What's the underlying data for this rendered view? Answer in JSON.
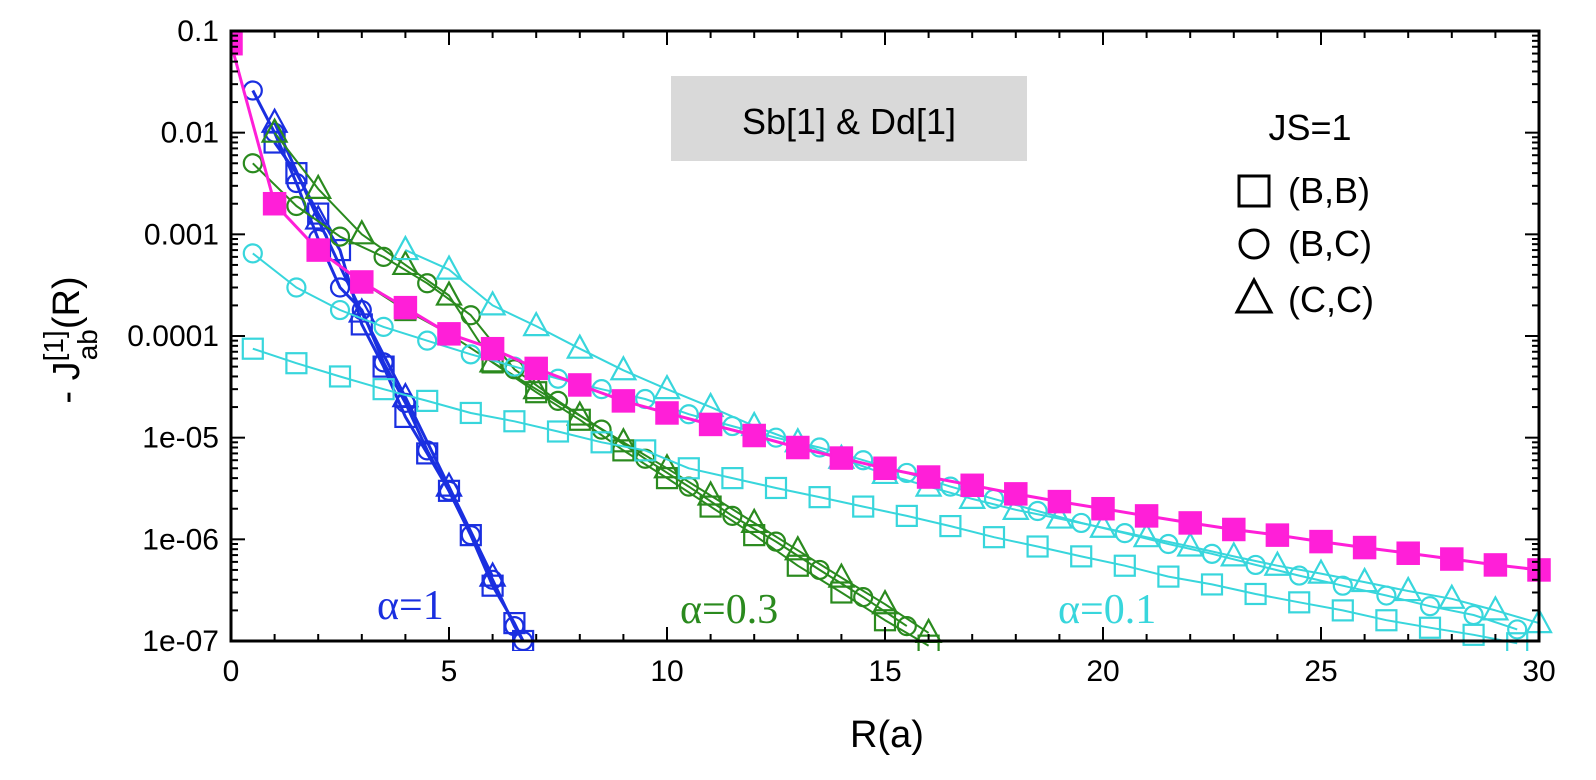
{
  "chart_data": {
    "type": "line",
    "title": "",
    "xlabel": "R(a)",
    "ylabel": {
      "prefix": "- J",
      "superscript": "[1]",
      "subscript": "ab",
      "suffix": "(R)"
    },
    "xlim": [
      0,
      30
    ],
    "ylim": [
      1e-07,
      0.1
    ],
    "yscale": "log",
    "x_ticks": [
      0,
      5,
      10,
      15,
      20,
      25,
      30
    ],
    "x_tick_labels": [
      "0",
      "5",
      "10",
      "15",
      "20",
      "25",
      "30"
    ],
    "y_ticks": [
      0.1,
      0.01,
      0.001,
      0.0001,
      1e-05,
      1e-06,
      1e-07
    ],
    "y_tick_labels": [
      "0.1",
      "0.01",
      "0.001",
      "0.0001",
      "1e-05",
      "1e-06",
      "1e-07"
    ],
    "boxed_label": "Sb[1] & Dd[1]",
    "legend": {
      "title": "JS=1",
      "entries": [
        {
          "marker": "square",
          "label": "(B,B)"
        },
        {
          "marker": "circle",
          "label": "(B,C)"
        },
        {
          "marker": "triangle",
          "label": "(C,C)"
        }
      ]
    },
    "annotations": [
      {
        "text": "α=1",
        "color_key": "blue"
      },
      {
        "text": "α=0.3",
        "color_key": "green"
      },
      {
        "text": "α=0.1",
        "color_key": "cyan"
      }
    ],
    "colors": {
      "blue": "#1a2fe0",
      "green": "#2a8a1e",
      "cyan": "#38d6dc",
      "magenta": "#ff1fd8"
    },
    "series": [
      {
        "name": "alpha=1 (B,B)",
        "color_key": "blue",
        "marker": "square",
        "width": 3,
        "x": [
          1,
          1.5,
          2,
          2.5,
          3,
          3.5,
          4,
          4.5,
          5,
          5.5,
          6,
          6.5,
          6.7
        ],
        "y": [
          0.008,
          0.004,
          0.0016,
          0.0007,
          0.00013,
          5e-05,
          1.6e-05,
          7e-06,
          3e-06,
          1.1e-06,
          3.5e-07,
          1.5e-07,
          1e-07
        ]
      },
      {
        "name": "alpha=1 (B,C)",
        "color_key": "blue",
        "marker": "circle",
        "width": 3,
        "x": [
          0.5,
          1,
          1.5,
          2,
          2.5,
          3,
          3.5,
          4,
          4.5,
          5,
          5.5,
          6,
          6.5,
          6.7
        ],
        "y": [
          0.026,
          0.01,
          0.0032,
          0.0009,
          0.0003,
          0.00018,
          5.5e-05,
          2.2e-05,
          7.5e-06,
          3e-06,
          1.1e-06,
          4e-07,
          1.4e-07,
          1e-07
        ]
      },
      {
        "name": "alpha=1 (C,C)",
        "color_key": "blue",
        "marker": "triangle",
        "width": 3,
        "x": [
          1,
          2,
          3,
          4,
          5,
          6
        ],
        "y": [
          0.0125,
          0.0014,
          0.00017,
          2.5e-05,
          3.3e-06,
          4.3e-07
        ]
      },
      {
        "name": "alpha=0.3 (B,B)",
        "color_key": "green",
        "marker": "square",
        "width": 2,
        "x": [
          1,
          2,
          3,
          4,
          5,
          6,
          7,
          8,
          9,
          10,
          11,
          12,
          13,
          14,
          15,
          16
        ],
        "y": [
          0.002,
          0.0007,
          0.00034,
          0.00018,
          0.000105,
          5.5e-05,
          2.8e-05,
          1.5e-05,
          7.5e-06,
          4e-06,
          2.1e-06,
          1.1e-06,
          5.5e-07,
          3e-07,
          1.6e-07,
          9e-08
        ]
      },
      {
        "name": "alpha=0.3 (B,C)",
        "color_key": "green",
        "marker": "circle",
        "width": 2,
        "x": [
          0.5,
          1.5,
          2.5,
          3.5,
          4.5,
          5.5,
          6.5,
          7.5,
          8.5,
          9.5,
          10.5,
          11.5,
          12.5,
          13.5,
          14.5,
          15.5
        ],
        "y": [
          0.005,
          0.0019,
          0.00095,
          0.0006,
          0.00033,
          0.00016,
          4.7e-05,
          2.3e-05,
          1.2e-05,
          6.2e-06,
          3.3e-06,
          1.7e-06,
          9.5e-07,
          5e-07,
          2.7e-07,
          1.4e-07
        ]
      },
      {
        "name": "alpha=0.3 (C,C)",
        "color_key": "green",
        "marker": "triangle",
        "width": 2,
        "x": [
          1,
          2,
          3,
          4,
          5,
          6,
          7,
          8,
          9,
          10,
          11,
          12,
          13,
          14,
          15,
          16
        ],
        "y": [
          0.01,
          0.0028,
          0.001,
          0.0005,
          0.00025,
          5.5e-05,
          3e-05,
          1.65e-05,
          9e-06,
          5e-06,
          2.7e-06,
          1.45e-06,
          7.8e-07,
          4.2e-07,
          2.3e-07,
          1.2e-07
        ]
      },
      {
        "name": "alpha=0.1 (B,B)",
        "color_key": "cyan",
        "marker": "square",
        "width": 2,
        "x": [
          0.5,
          1.5,
          2.5,
          3.5,
          4.5,
          5.5,
          6.5,
          7.5,
          8.5,
          9.5,
          10.5,
          11.5,
          12.5,
          13.5,
          14.5,
          15.5,
          16.5,
          17.5,
          18.5,
          19.5,
          20.5,
          21.5,
          22.5,
          23.5,
          24.5,
          25.5,
          26.5,
          27.5,
          28.5,
          29.5
        ],
        "y": [
          7.5e-05,
          5.4e-05,
          4e-05,
          3e-05,
          2.3e-05,
          1.75e-05,
          1.45e-05,
          1.15e-05,
          9e-06,
          7.5e-06,
          5e-06,
          4e-06,
          3.2e-06,
          2.6e-06,
          2.1e-06,
          1.7e-06,
          1.35e-06,
          1.05e-06,
          8.5e-07,
          6.8e-07,
          5.5e-07,
          4.3e-07,
          3.6e-07,
          2.9e-07,
          2.4e-07,
          2e-07,
          1.6e-07,
          1.35e-07,
          1.15e-07,
          9.5e-08
        ]
      },
      {
        "name": "alpha=0.1 (B,C)",
        "color_key": "cyan",
        "marker": "circle",
        "width": 2,
        "x": [
          0.5,
          1.5,
          2.5,
          3.5,
          4.5,
          5.5,
          6.5,
          7.5,
          8.5,
          9.5,
          10.5,
          11.5,
          12.5,
          13.5,
          14.5,
          15.5,
          16.5,
          17.5,
          18.5,
          19.5,
          20.5,
          21.5,
          22.5,
          23.5,
          24.5,
          25.5,
          26.5,
          27.5,
          28.5,
          29.5
        ],
        "y": [
          0.00065,
          0.0003,
          0.00018,
          0.000123,
          9e-05,
          6.6e-05,
          5e-05,
          3.8e-05,
          3e-05,
          2.4e-05,
          1.7e-05,
          1.3e-05,
          1e-05,
          8e-06,
          6e-06,
          4.5e-06,
          3.3e-06,
          2.5e-06,
          1.9e-06,
          1.45e-06,
          1.15e-06,
          9e-07,
          7.2e-07,
          5.6e-07,
          4.4e-07,
          3.5e-07,
          2.8e-07,
          2.2e-07,
          1.8e-07,
          1.3e-07
        ]
      },
      {
        "name": "alpha=0.1 (C,C)",
        "color_key": "cyan",
        "marker": "triangle",
        "width": 2,
        "x": [
          4,
          5,
          6,
          7,
          8,
          9,
          10,
          11,
          12,
          13,
          14,
          15,
          16,
          17,
          18,
          19,
          20,
          21,
          22,
          23,
          24,
          25,
          26,
          27,
          28,
          29,
          30
        ],
        "y": [
          0.0007,
          0.00045,
          0.0002,
          0.000125,
          7.5e-05,
          4.6e-05,
          3e-05,
          2e-05,
          1.3e-05,
          9e-06,
          6.2e-06,
          4.4e-06,
          3.3e-06,
          2.5e-06,
          1.95e-06,
          1.6e-06,
          1.3e-06,
          1.05e-06,
          8.5e-07,
          6.8e-07,
          5.5e-07,
          4.6e-07,
          3.8e-07,
          3.1e-07,
          2.6e-07,
          2e-07,
          1.5e-07
        ]
      },
      {
        "name": "magenta (filled squares)",
        "color_key": "magenta",
        "marker": "square-filled",
        "width": 3,
        "x": [
          0,
          1,
          2,
          3,
          4,
          5,
          6,
          7,
          8,
          9,
          10,
          11,
          12,
          13,
          14,
          15,
          16,
          17,
          18,
          19,
          20,
          21,
          22,
          23,
          24,
          25,
          26,
          27,
          28,
          29,
          30
        ],
        "y": [
          0.075,
          0.002,
          0.0007,
          0.00034,
          0.00019,
          0.000105,
          7.5e-05,
          4.8e-05,
          3.3e-05,
          2.3e-05,
          1.75e-05,
          1.35e-05,
          1.05e-05,
          8e-06,
          6.3e-06,
          5e-06,
          4.1e-06,
          3.4e-06,
          2.8e-06,
          2.35e-06,
          2e-06,
          1.7e-06,
          1.45e-06,
          1.25e-06,
          1.1e-06,
          9.5e-07,
          8.3e-07,
          7.3e-07,
          6.4e-07,
          5.6e-07,
          5e-07
        ]
      }
    ]
  }
}
